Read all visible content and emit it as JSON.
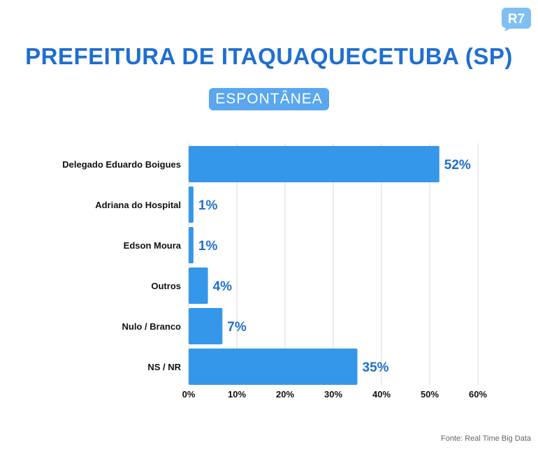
{
  "logo": {
    "text": "R7"
  },
  "header": {
    "title": "PREFEITURA DE ITAQUAQUECETUBA (SP)"
  },
  "badge": {
    "label": "ESPONTÂNEA"
  },
  "footer": {
    "source": "Fonte: Real Time Big Data"
  },
  "colors": {
    "bar": "#3597ea",
    "value_label": "#1f6fd1",
    "title": "#1f6fd1",
    "badge": "#5aa7ef",
    "grid": "#d9d9d9"
  },
  "chart_data": {
    "type": "bar",
    "orientation": "horizontal",
    "categories": [
      "Delegado Eduardo Boigues",
      "Adriana do Hospital",
      "Edson Moura",
      "Outros",
      "Nulo / Branco",
      "NS / NR"
    ],
    "values": [
      52,
      1,
      1,
      4,
      7,
      35
    ],
    "value_labels": [
      "52%",
      "1%",
      "1%",
      "4%",
      "7%",
      "35%"
    ],
    "x_ticks": [
      "0%",
      "10%",
      "20%",
      "30%",
      "40%",
      "50%",
      "60%"
    ],
    "xlim": [
      0,
      60
    ],
    "grid": true
  }
}
